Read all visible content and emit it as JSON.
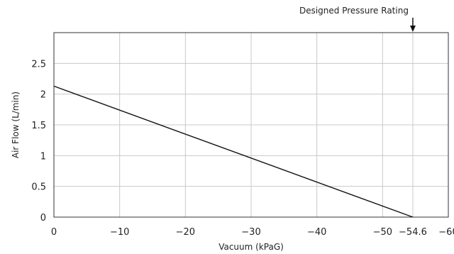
{
  "chart_data": {
    "type": "line",
    "xlabel": "Vacuum (kPaG)",
    "ylabel": "Air Flow (L/min)",
    "xlim": [
      0,
      -60
    ],
    "ylim": [
      0,
      3
    ],
    "xticks": [
      0,
      -10,
      -20,
      -30,
      -40,
      -50,
      -54.6,
      -60
    ],
    "xtick_labels": [
      "0",
      "−10",
      "−20",
      "−30",
      "−40",
      "−50",
      "−54.6",
      "−60"
    ],
    "yticks": [
      0,
      0.5,
      1,
      1.5,
      2,
      2.5
    ],
    "ytick_labels": [
      "0",
      "0.5",
      "1",
      "1.5",
      "2",
      "2.5"
    ],
    "grid": true,
    "series": [
      {
        "x": [
          0,
          -54.6
        ],
        "y": [
          2.13,
          0
        ]
      }
    ],
    "annotations": [
      {
        "text": "Designed Pressure Rating",
        "x": -54.6,
        "arrow": "down"
      }
    ],
    "colors": {
      "line": "#111111",
      "grid": "#c8c8c8",
      "axis": "#333333"
    }
  }
}
